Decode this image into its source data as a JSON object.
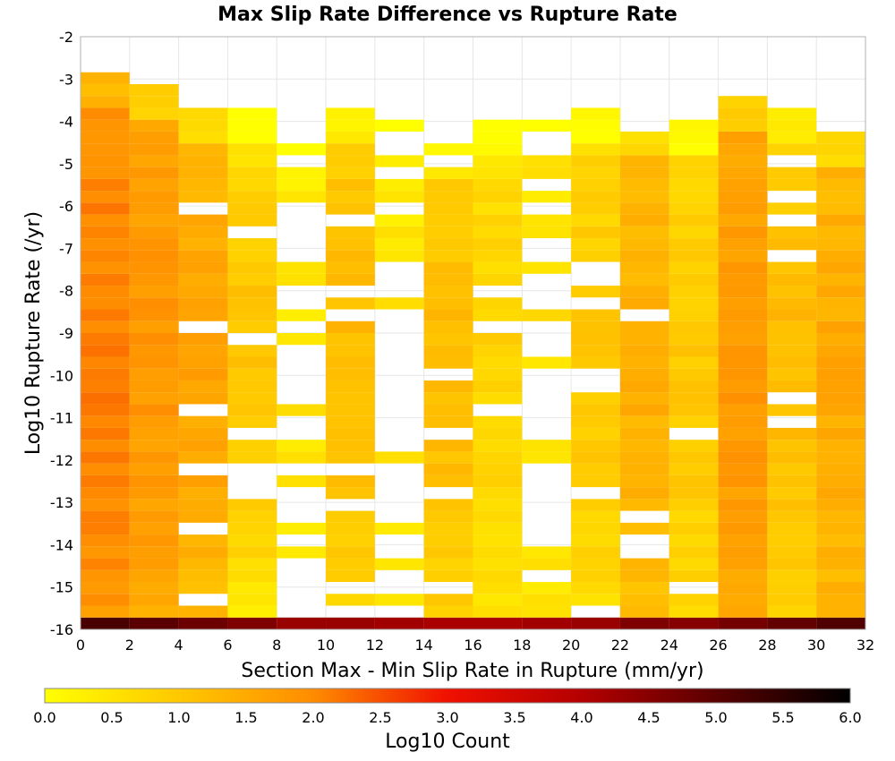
{
  "chart_data": {
    "type": "heatmap",
    "title": "Max Slip Rate Difference vs Rupture Rate",
    "xlabel": "Section Max - Min Slip Rate in Rupture (mm/yr)",
    "ylabel": "Log10 Rupture Rate (/yr)",
    "xlim": [
      0,
      32
    ],
    "ylim": [
      -16,
      -2
    ],
    "x_ticks": [
      "0",
      "2",
      "4",
      "6",
      "8",
      "10",
      "12",
      "14",
      "16",
      "18",
      "20",
      "22",
      "24",
      "26",
      "28",
      "30",
      "32"
    ],
    "y_ticks": [
      "-16",
      "-15",
      "-14",
      "-13",
      "-12",
      "-11",
      "-10",
      "-9",
      "-8",
      "-7",
      "-6",
      "-5",
      "-4",
      "-3",
      "-2"
    ],
    "x_bin_width": 2,
    "y_bin_width": 0.28,
    "y_bin_start": -16,
    "colorbar": {
      "label": "Log10 Count",
      "range": [
        0,
        6
      ],
      "ticks": [
        "0.0",
        "0.5",
        "1.0",
        "1.5",
        "2.0",
        "2.5",
        "3.0",
        "3.5",
        "4.0",
        "4.5",
        "5.0",
        "5.5",
        "6.0"
      ],
      "colors": [
        "#ffff00",
        "#ffa500",
        "#ff0000",
        "#8b0000",
        "#000000"
      ]
    },
    "grid": true,
    "columns": [
      {
        "x_range": [
          0,
          2
        ],
        "occupied": "-16 to -3",
        "typical_log10_count": 1.8,
        "peak_log10_count": 2.1,
        "bottom_row_log10_count": 5.2
      },
      {
        "x_range": [
          2,
          4
        ],
        "occupied": "-16 to -3.3",
        "typical_log10_count": 1.5,
        "peak_log10_count": 1.8,
        "bottom_row_log10_count": 5.0
      },
      {
        "x_range": [
          4,
          6
        ],
        "occupied": "-16 to -3.9",
        "typical_log10_count": 1.2,
        "peak_log10_count": 1.6,
        "bottom_row_log10_count": 4.8
      },
      {
        "x_range": [
          6,
          8
        ],
        "occupied": "-16 to -3.9",
        "typical_log10_count": 0.4,
        "peak_log10_count": 1.1,
        "bottom_row_log10_count": 4.6
      },
      {
        "x_range": [
          8,
          10
        ],
        "occupied": "sparse -16 to -4.2",
        "typical_log10_count": 0.3,
        "peak_log10_count": 0.5,
        "bottom_row_log10_count": 4.3
      },
      {
        "x_range": [
          10,
          12
        ],
        "occupied": "-16 to -3.9",
        "typical_log10_count": 0.8,
        "peak_log10_count": 1.2,
        "bottom_row_log10_count": 4.3
      },
      {
        "x_range": [
          12,
          14
        ],
        "occupied": "sparse -16 to -4.2",
        "typical_log10_count": 0.3,
        "peak_log10_count": 0.5,
        "bottom_row_log10_count": 4.2
      },
      {
        "x_range": [
          14,
          16
        ],
        "occupied": "-16 to -4.7",
        "typical_log10_count": 0.8,
        "peak_log10_count": 1.2,
        "bottom_row_log10_count": 4.1
      },
      {
        "x_range": [
          16,
          18
        ],
        "occupied": "-16 to -4.2",
        "typical_log10_count": 0.5,
        "peak_log10_count": 0.8,
        "bottom_row_log10_count": 4.1
      },
      {
        "x_range": [
          18,
          20
        ],
        "occupied": "sparse -16 to -4.2",
        "typical_log10_count": 0.4,
        "peak_log10_count": 0.6,
        "bottom_row_log10_count": 4.2
      },
      {
        "x_range": [
          20,
          22
        ],
        "occupied": "-16 to -3.9",
        "typical_log10_count": 0.6,
        "peak_log10_count": 1.0,
        "bottom_row_log10_count": 4.3
      },
      {
        "x_range": [
          22,
          24
        ],
        "occupied": "-16 to -4.2",
        "typical_log10_count": 1.1,
        "peak_log10_count": 1.4,
        "bottom_row_log10_count": 4.6
      },
      {
        "x_range": [
          24,
          26
        ],
        "occupied": "-16 to -4.2",
        "typical_log10_count": 0.6,
        "peak_log10_count": 1.0,
        "bottom_row_log10_count": 4.5
      },
      {
        "x_range": [
          26,
          28
        ],
        "occupied": "-16 to -3.6",
        "typical_log10_count": 1.4,
        "peak_log10_count": 1.8,
        "bottom_row_log10_count": 4.7
      },
      {
        "x_range": [
          28,
          30
        ],
        "occupied": "-16 to -3.9",
        "typical_log10_count": 0.8,
        "peak_log10_count": 1.2,
        "bottom_row_log10_count": 4.9
      },
      {
        "x_range": [
          30,
          32
        ],
        "occupied": "-16 to -4.4",
        "typical_log10_count": 1.2,
        "peak_log10_count": 1.5,
        "bottom_row_log10_count": 5.1
      }
    ]
  }
}
